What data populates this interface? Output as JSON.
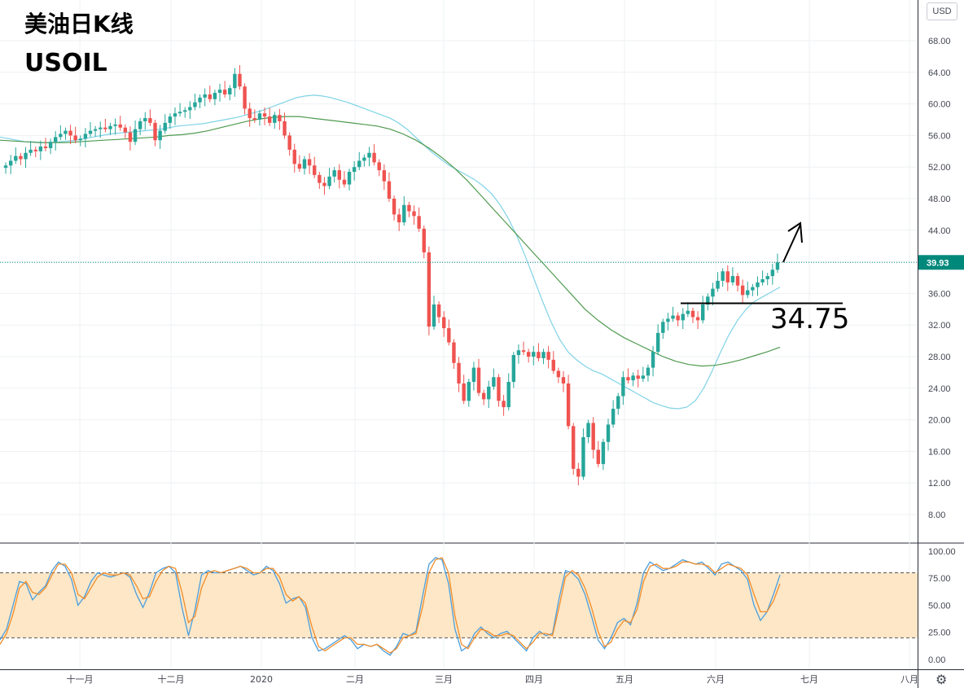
{
  "title": "美油日K线",
  "symbol": "USOIL",
  "currency_button": "USD",
  "settings_icon": "gear-icon",
  "annotations": {
    "support_level": "34.75",
    "arrow_icon": "up-right-arrow-icon"
  },
  "colors": {
    "up": "#26a69a",
    "down": "#ef5350",
    "ma_fast": "#7fd3e6",
    "ma_slow": "#4f9a4f",
    "stoch_k": "#4a9ede",
    "stoch_d": "#f28c28",
    "stoch_band": "#fde7c6",
    "price_tag": "#00897b"
  },
  "chart_data": [
    {
      "type": "candlestick",
      "title": "美油日K线",
      "ylim": [
        4,
        72
      ],
      "y_ticks": [
        "8.00",
        "12.00",
        "16.00",
        "20.00",
        "24.00",
        "28.00",
        "32.00",
        "36.00",
        "40.00",
        "44.00",
        "48.00",
        "52.00",
        "56.00",
        "60.00",
        "64.00",
        "68.00"
      ],
      "last_price": "39.93",
      "x_labels": [
        "十一月",
        "十二月",
        "2020",
        "二月",
        "三月",
        "四月",
        "五月",
        "六月",
        "七月",
        "八月"
      ],
      "close": [
        52.2,
        52.8,
        53.4,
        53.0,
        53.8,
        54.2,
        54.0,
        54.6,
        54.4,
        55.2,
        55.8,
        56.2,
        56.6,
        56.0,
        55.4,
        55.6,
        56.2,
        56.6,
        56.8,
        57.0,
        56.8,
        57.2,
        57.4,
        57.0,
        56.4,
        55.2,
        56.8,
        57.8,
        58.2,
        57.6,
        55.4,
        56.6,
        57.6,
        58.4,
        58.8,
        59.0,
        59.2,
        59.6,
        60.2,
        60.8,
        61.2,
        60.6,
        61.4,
        61.8,
        61.2,
        62.0,
        63.8,
        62.2,
        59.4,
        58.2,
        58.0,
        58.8,
        58.4,
        57.6,
        58.6,
        57.8,
        56.0,
        54.2,
        52.4,
        51.8,
        53.0,
        52.2,
        51.0,
        50.0,
        49.6,
        50.8,
        51.6,
        50.4,
        49.8,
        51.4,
        52.0,
        52.8,
        53.2,
        53.8,
        52.6,
        51.6,
        50.2,
        48.0,
        46.0,
        45.0,
        47.2,
        46.4,
        45.8,
        44.2,
        41.2,
        31.8,
        34.6,
        33.0,
        31.6,
        29.8,
        27.2,
        24.6,
        22.4,
        24.8,
        26.6,
        23.4,
        22.6,
        24.2,
        25.4,
        22.4,
        21.6,
        24.8,
        28.2,
        28.8,
        28.6,
        28.0,
        28.6,
        27.8,
        28.6,
        27.6,
        26.2,
        25.4,
        24.6,
        19.2,
        13.8,
        12.8,
        17.8,
        19.6,
        16.2,
        14.4,
        17.2,
        19.4,
        21.4,
        23.0,
        25.4,
        25.0,
        25.6,
        25.2,
        25.6,
        26.6,
        28.6,
        31.0,
        32.4,
        32.8,
        33.2,
        32.6,
        33.4,
        33.8,
        33.0,
        32.6,
        34.6,
        35.6,
        36.6,
        37.6,
        38.8,
        37.4,
        38.2,
        37.0,
        35.8,
        36.4,
        36.8,
        37.4,
        37.8,
        38.2,
        39.0,
        39.93
      ],
      "ma_fast": [
        55.8,
        55.6,
        55.4,
        55.2,
        55.2,
        55.1,
        55.1,
        55.2,
        55.3,
        55.4,
        55.6,
        55.8,
        56.0,
        56.2,
        56.3,
        56.4,
        56.5,
        56.6,
        56.7,
        56.8,
        57.0,
        57.2,
        57.3,
        57.4,
        57.5,
        57.7,
        57.9,
        58.1,
        58.3,
        58.6,
        58.9,
        59.2,
        59.6,
        60.0,
        60.4,
        60.8,
        61.0,
        61.1,
        61.0,
        60.8,
        60.5,
        60.2,
        59.8,
        59.4,
        59.0,
        58.6,
        58.2,
        57.6,
        56.8,
        55.8,
        54.8,
        53.8,
        53.0,
        52.2,
        51.6,
        51.0,
        50.4,
        49.6,
        48.6,
        47.2,
        45.4,
        43.2,
        40.6,
        37.8,
        35.0,
        32.4,
        30.2,
        28.6,
        27.6,
        26.8,
        26.2,
        25.8,
        25.2,
        24.6,
        24.0,
        23.4,
        22.8,
        22.2,
        21.8,
        21.5,
        21.4,
        21.6,
        22.4,
        24.0,
        26.2,
        28.6,
        30.8,
        32.6,
        34.0,
        35.0,
        35.6,
        36.2,
        36.8
      ],
      "ma_slow": [
        55.4,
        55.3,
        55.2,
        55.1,
        55.1,
        55.1,
        55.2,
        55.3,
        55.4,
        55.5,
        55.6,
        55.7,
        55.8,
        56.0,
        56.1,
        56.3,
        56.6,
        57.0,
        57.4,
        57.8,
        58.1,
        58.3,
        58.4,
        58.4,
        58.2,
        58.0,
        57.8,
        57.6,
        57.4,
        57.2,
        56.8,
        56.2,
        55.4,
        54.4,
        53.2,
        51.8,
        50.2,
        48.4,
        46.6,
        44.8,
        43.0,
        41.2,
        39.4,
        37.6,
        35.8,
        34.0,
        32.6,
        31.4,
        30.4,
        29.6,
        28.8,
        28.0,
        27.4,
        27.0,
        26.8,
        26.9,
        27.2,
        27.6,
        28.1,
        28.6,
        29.2
      ]
    },
    {
      "type": "line",
      "title": "",
      "ylim": [
        -8,
        104
      ],
      "y_ticks": [
        "100.00",
        "75.00",
        "50.00",
        "25.00",
        "0.00"
      ],
      "upper_band": 80,
      "lower_band": 20,
      "series": [
        {
          "values": [
            18,
            28,
            50,
            72,
            70,
            55,
            62,
            68,
            82,
            90,
            86,
            74,
            50,
            58,
            72,
            80,
            78,
            76,
            78,
            80,
            76,
            60,
            48,
            62,
            80,
            84,
            86,
            80,
            48,
            22,
            46,
            78,
            82,
            80,
            80,
            82,
            84,
            86,
            82,
            78,
            80,
            86,
            82,
            70,
            52,
            56,
            58,
            48,
            20,
            8,
            10,
            14,
            18,
            22,
            18,
            10,
            14,
            12,
            14,
            8,
            4,
            12,
            24,
            22,
            26,
            58,
            88,
            94,
            92,
            70,
            28,
            8,
            12,
            24,
            30,
            24,
            20,
            24,
            26,
            20,
            14,
            8,
            20,
            26,
            22,
            24,
            56,
            82,
            80,
            74,
            60,
            40,
            18,
            10,
            20,
            34,
            38,
            32,
            52,
            80,
            90,
            86,
            82,
            84,
            88,
            92,
            90,
            88,
            90,
            84,
            78,
            88,
            90,
            86,
            82,
            74,
            50,
            36,
            44,
            60,
            78
          ]
        },
        {
          "values": [
            14,
            24,
            42,
            66,
            72,
            62,
            60,
            66,
            78,
            88,
            88,
            80,
            60,
            56,
            66,
            76,
            80,
            78,
            78,
            80,
            78,
            68,
            56,
            58,
            72,
            82,
            86,
            84,
            62,
            34,
            40,
            66,
            80,
            82,
            80,
            82,
            84,
            86,
            84,
            80,
            80,
            84,
            84,
            76,
            60,
            54,
            58,
            52,
            30,
            12,
            8,
            12,
            16,
            20,
            20,
            14,
            14,
            12,
            14,
            10,
            6,
            10,
            20,
            22,
            24,
            48,
            80,
            92,
            94,
            80,
            40,
            14,
            10,
            20,
            28,
            26,
            22,
            22,
            24,
            22,
            16,
            10,
            16,
            24,
            24,
            22,
            48,
            76,
            82,
            78,
            66,
            48,
            26,
            12,
            16,
            28,
            36,
            34,
            46,
            72,
            86,
            88,
            84,
            84,
            86,
            90,
            90,
            88,
            88,
            86,
            80,
            84,
            88,
            86,
            84,
            78,
            60,
            44,
            44,
            54,
            70
          ]
        }
      ]
    }
  ]
}
